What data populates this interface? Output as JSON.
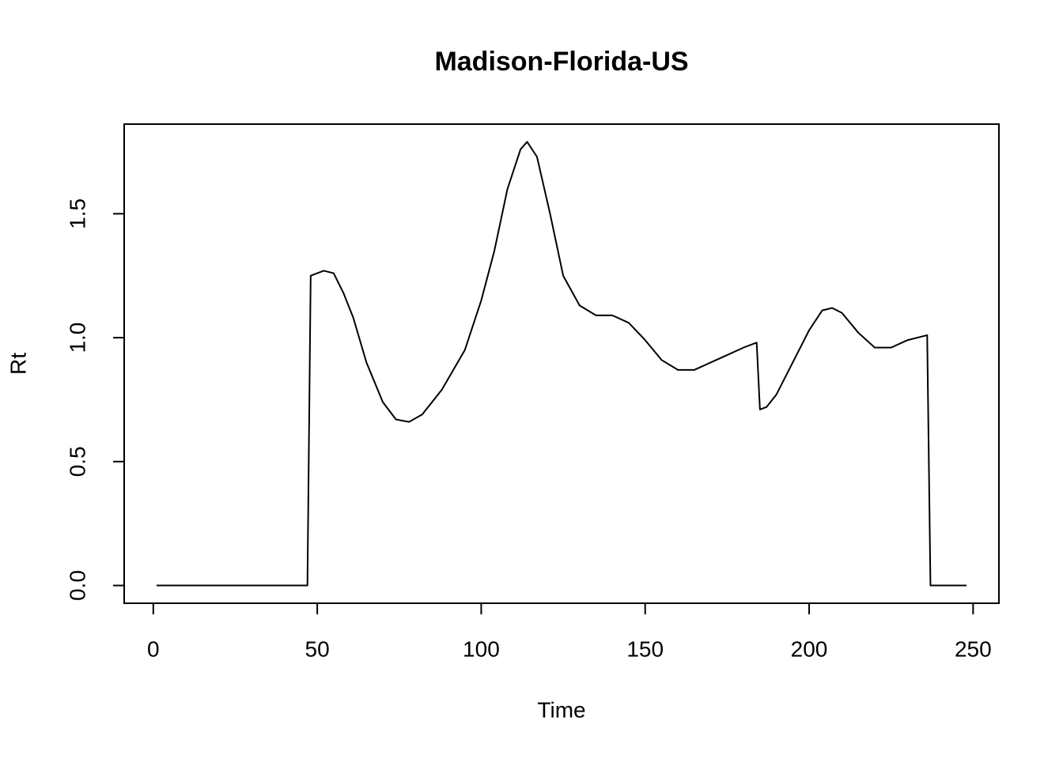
{
  "chart_data": {
    "type": "line",
    "title": "Madison-Florida-US",
    "x_label": "Time",
    "y_label": "Rt",
    "x": [
      1,
      10,
      20,
      30,
      40,
      47,
      48,
      52,
      55,
      58,
      61,
      65,
      70,
      74,
      78,
      82,
      88,
      95,
      100,
      104,
      108,
      112,
      114,
      117,
      121,
      125,
      130,
      135,
      140,
      145,
      150,
      155,
      160,
      165,
      170,
      175,
      180,
      184,
      185,
      187,
      190,
      195,
      200,
      204,
      207,
      210,
      215,
      220,
      225,
      230,
      236,
      237,
      248
    ],
    "series": [
      {
        "name": "Rt",
        "color": "#000000",
        "values": [
          0,
          0,
          0,
          0,
          0,
          0,
          1.25,
          1.27,
          1.26,
          1.18,
          1.08,
          0.9,
          0.74,
          0.67,
          0.66,
          0.69,
          0.79,
          0.95,
          1.15,
          1.35,
          1.6,
          1.76,
          1.79,
          1.73,
          1.5,
          1.25,
          1.13,
          1.09,
          1.09,
          1.06,
          0.99,
          0.91,
          0.87,
          0.87,
          0.9,
          0.93,
          0.96,
          0.98,
          0.71,
          0.72,
          0.77,
          0.9,
          1.03,
          1.11,
          1.12,
          1.1,
          1.02,
          0.96,
          0.96,
          0.99,
          1.01,
          0,
          0
        ]
      }
    ],
    "xlim": [
      -8.88,
      257.88
    ],
    "ylim": [
      -0.0716,
      1.8616
    ],
    "xticks": [
      0,
      50,
      100,
      150,
      200,
      250
    ],
    "yticks": [
      {
        "value": 0,
        "label": "0.0"
      },
      0.5,
      {
        "value": 1,
        "label": "1.0"
      },
      1.5
    ]
  }
}
